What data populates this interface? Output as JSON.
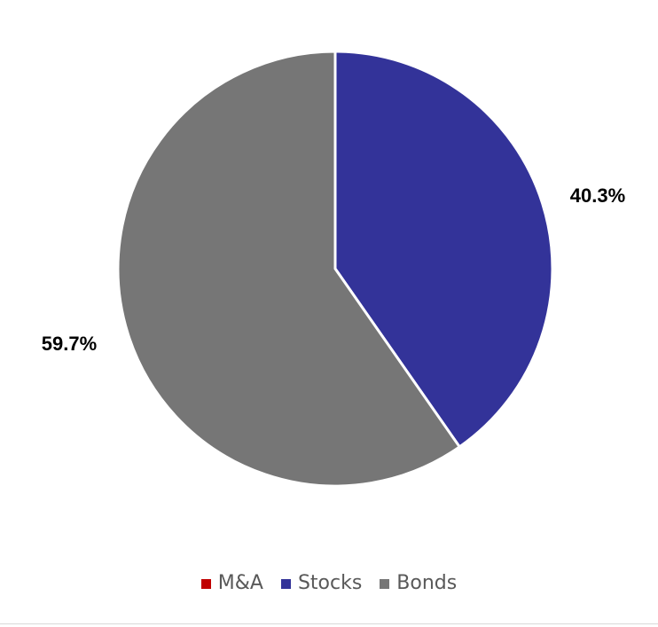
{
  "chart_data": {
    "type": "pie",
    "title": "",
    "slices": [
      {
        "name": "M&A",
        "value": 0.0,
        "label": "",
        "color": "#c00000"
      },
      {
        "name": "Stocks",
        "value": 40.3,
        "label": "40.3%",
        "color": "#333399"
      },
      {
        "name": "Bonds",
        "value": 59.7,
        "label": "59.7%",
        "color": "#767676"
      }
    ],
    "start_angle_deg": 0,
    "direction": "clockwise",
    "legend": {
      "position": "bottom",
      "entries": [
        "M&A",
        "Stocks",
        "Bonds"
      ]
    }
  }
}
